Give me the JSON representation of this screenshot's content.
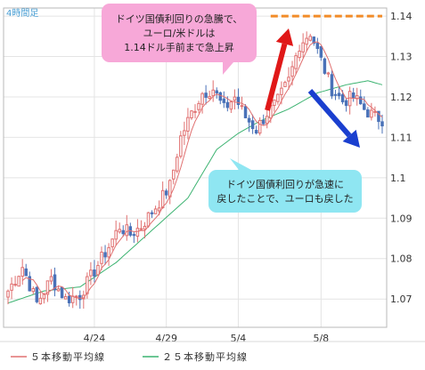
{
  "chart_data": {
    "type": "candlestick",
    "period_label": "4時間足",
    "ylim": [
      1.063,
      1.142
    ],
    "y_ticks": [
      "1.14",
      "1.13",
      "1.12",
      "1.11",
      "1.1",
      "1.09",
      "1.08",
      "1.07"
    ],
    "x_ticks": [
      {
        "label": "4/24",
        "index": 24
      },
      {
        "label": "4/29",
        "index": 44
      },
      {
        "label": "5/4",
        "index": 64
      },
      {
        "label": "5/8",
        "index": 87
      }
    ],
    "candle_count": 105,
    "anchors": [
      {
        "i": 0,
        "v": 1.072
      },
      {
        "i": 4,
        "v": 1.078
      },
      {
        "i": 8,
        "v": 1.069
      },
      {
        "i": 12,
        "v": 1.075
      },
      {
        "i": 16,
        "v": 1.07
      },
      {
        "i": 20,
        "v": 1.071
      },
      {
        "i": 24,
        "v": 1.077
      },
      {
        "i": 28,
        "v": 1.083
      },
      {
        "i": 31,
        "v": 1.088
      },
      {
        "i": 34,
        "v": 1.086
      },
      {
        "i": 37,
        "v": 1.088
      },
      {
        "i": 42,
        "v": 1.094
      },
      {
        "i": 45,
        "v": 1.098
      },
      {
        "i": 48,
        "v": 1.11
      },
      {
        "i": 51,
        "v": 1.116
      },
      {
        "i": 54,
        "v": 1.121
      },
      {
        "i": 57,
        "v": 1.122
      },
      {
        "i": 60,
        "v": 1.117
      },
      {
        "i": 63,
        "v": 1.12
      },
      {
        "i": 66,
        "v": 1.115
      },
      {
        "i": 69,
        "v": 1.112
      },
      {
        "i": 72,
        "v": 1.116
      },
      {
        "i": 75,
        "v": 1.119
      },
      {
        "i": 78,
        "v": 1.124
      },
      {
        "i": 81,
        "v": 1.133
      },
      {
        "i": 84,
        "v": 1.136
      },
      {
        "i": 87,
        "v": 1.129
      },
      {
        "i": 90,
        "v": 1.122
      },
      {
        "i": 93,
        "v": 1.119
      },
      {
        "i": 96,
        "v": 1.12
      },
      {
        "i": 99,
        "v": 1.117
      },
      {
        "i": 102,
        "v": 1.115
      },
      {
        "i": 104,
        "v": 1.1145
      }
    ],
    "ma25_anchors": [
      {
        "i": 0,
        "v": 1.069
      },
      {
        "i": 10,
        "v": 1.072
      },
      {
        "i": 20,
        "v": 1.073
      },
      {
        "i": 30,
        "v": 1.079
      },
      {
        "i": 40,
        "v": 1.087
      },
      {
        "i": 50,
        "v": 1.095
      },
      {
        "i": 58,
        "v": 1.107
      },
      {
        "i": 64,
        "v": 1.111
      },
      {
        "i": 70,
        "v": 1.114
      },
      {
        "i": 78,
        "v": 1.117
      },
      {
        "i": 86,
        "v": 1.121
      },
      {
        "i": 94,
        "v": 1.123
      },
      {
        "i": 100,
        "v": 1.124
      },
      {
        "i": 104,
        "v": 1.123
      }
    ],
    "resistance_level": 1.14,
    "series": [
      {
        "name": "５本移動平均線",
        "color": "#e07070"
      },
      {
        "name": "２５本移動平均線",
        "color": "#3cb371"
      }
    ],
    "candle_colors": {
      "up": "#e07070",
      "down": "#4a72b8"
    },
    "annotations": [
      {
        "id": "pink",
        "lines": [
          "ドイツ国債利回りの急騰で、",
          "ユーロ/米ドルは",
          "1.14ドル手前まで急上昇"
        ],
        "color": "#f7a8d8"
      },
      {
        "id": "cyan",
        "lines": [
          "ドイツ国債利回りが急速に",
          "戻したことで、ユーロも戻した"
        ],
        "color": "#8fe6f2"
      }
    ]
  }
}
